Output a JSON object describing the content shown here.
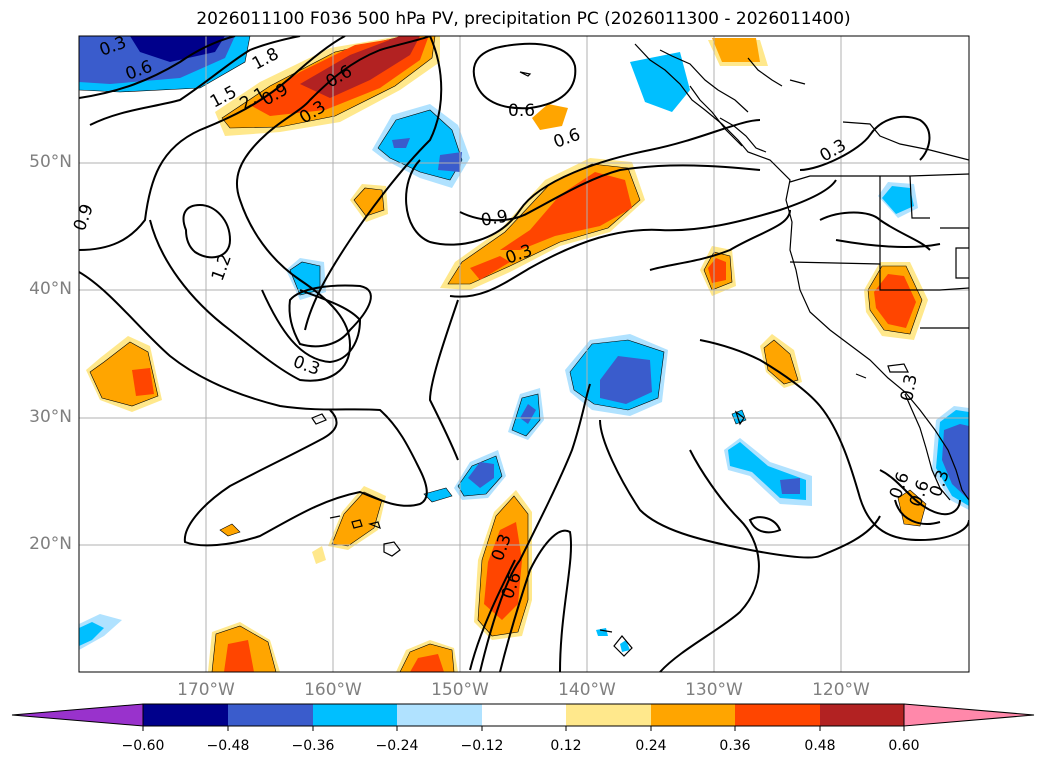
{
  "title": "2026011100 F036 500 hPa PV, precipitation PC (2026011300 - 2026011400)",
  "axes": {
    "lat_labels": [
      "50°N",
      "40°N",
      "30°N",
      "20°N"
    ],
    "lon_labels": [
      "170°W",
      "160°W",
      "150°W",
      "140°W",
      "130°W",
      "120°W"
    ]
  },
  "contour_labels": [
    "0.3",
    "0.6",
    "1.8",
    "0.6",
    "1.5",
    "2.1",
    "0.9",
    "0.3",
    "0.6",
    "0.6",
    "0.9",
    "0.3",
    "0.9",
    "1.2",
    "0.3",
    "0.3",
    "0.6",
    "0.3",
    "0.3",
    "0.6",
    "0.6",
    "0.3"
  ],
  "colorbar": {
    "tick_labels": [
      "−0.60",
      "−0.48",
      "−0.36",
      "−0.24",
      "−0.12",
      "0.12",
      "0.24",
      "0.36",
      "0.48",
      "0.60"
    ],
    "colors": [
      "#9932cc",
      "#00008b",
      "#3a5ccc",
      "#00bfff",
      "#b0e2ff",
      "#ffffff",
      "#ffe88c",
      "#ffa500",
      "#ff4500",
      "#b22222",
      "#ff88aa"
    ]
  }
}
